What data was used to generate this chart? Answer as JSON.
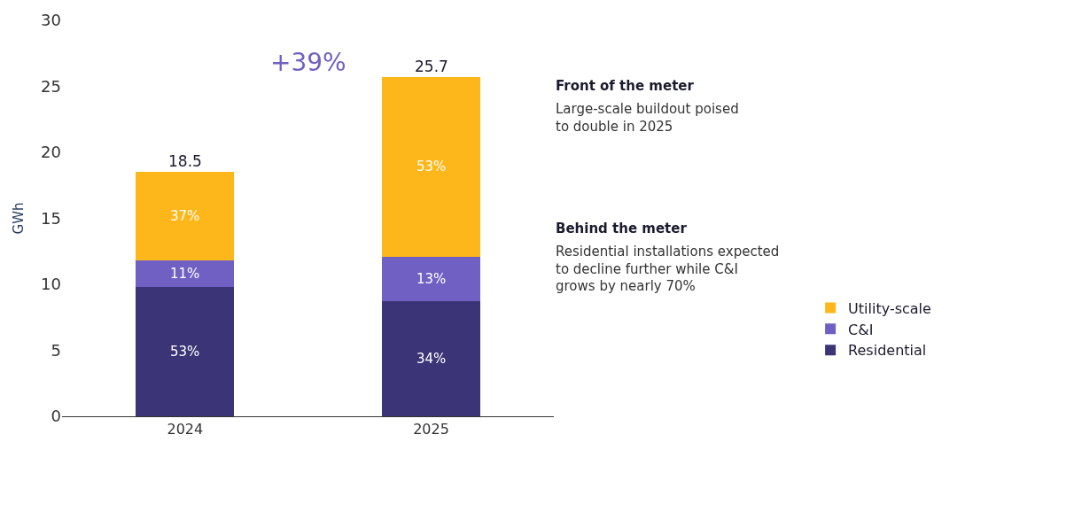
{
  "chart_data": {
    "type": "bar",
    "stacked": true,
    "categories": [
      "2024",
      "2025"
    ],
    "ylabel": "GWh",
    "ylim": [
      0,
      30
    ],
    "yticks": [
      0,
      5,
      10,
      15,
      20,
      25,
      30
    ],
    "legend": "right",
    "series": [
      {
        "name": "Residential",
        "color": "#3b3577",
        "values": [
          9.8,
          8.7
        ]
      },
      {
        "name": "C&I",
        "color": "#7060c4",
        "values": [
          2.0,
          3.4
        ]
      },
      {
        "name": "Utility-scale",
        "color": "#fdb71b",
        "values": [
          6.7,
          13.6
        ]
      }
    ],
    "totals": [
      "18.5",
      "25.7"
    ],
    "annotations": [
      "+39%",
      "Front of the meter",
      "Large-scale buildout poised\nto double in 2025",
      "Behind the meter",
      "Residential installations expected\nto decline further while C&I\ngrows by nearly 70%",
      "53%",
      "11%",
      "37%",
      "34%",
      "13%",
      "53%"
    ]
  }
}
